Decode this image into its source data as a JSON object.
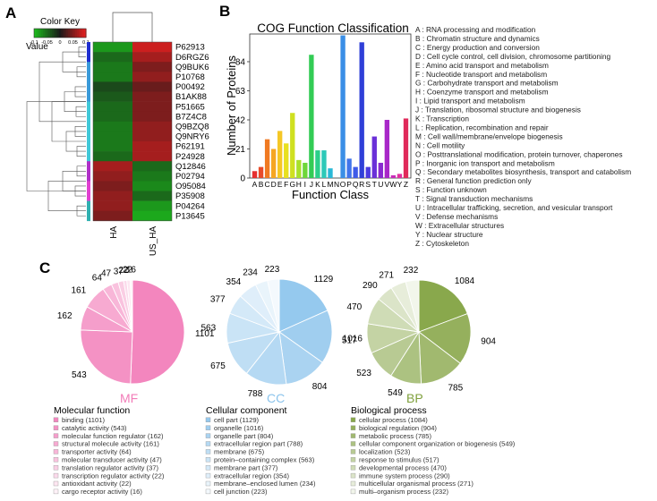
{
  "panel_labels": {
    "a": "A",
    "b": "B",
    "c": "C"
  },
  "colors": {
    "heat_low": "#1cb81c",
    "heat_mid": "#1a1a1a",
    "heat_high": "#e02020",
    "mf": "#f27cb8",
    "cc": "#8cc4ec",
    "bp": "#7fa03c"
  },
  "chart_data": [
    {
      "type": "heatmap",
      "title": "Color Key",
      "value_label": "Value",
      "color_key_ticks": [
        "-0.1",
        "-0.05",
        "0",
        "0.05",
        "0.1"
      ],
      "columns": [
        "HA",
        "US_HA"
      ],
      "rows": [
        "P62913",
        "D6RGZ6",
        "Q9BUK6",
        "P10768",
        "P00492",
        "B1AK88",
        "P51665",
        "B7Z4C8",
        "Q9BZQ8",
        "Q9NRY6",
        "P62191",
        "P24928",
        "Q12846",
        "P02794",
        "O95084",
        "P35908",
        "P04264",
        "P13645"
      ],
      "values": [
        [
          -0.08,
          0.09
        ],
        [
          -0.05,
          0.07
        ],
        [
          -0.06,
          0.05
        ],
        [
          -0.06,
          0.06
        ],
        [
          -0.03,
          0.04
        ],
        [
          -0.04,
          0.05
        ],
        [
          -0.05,
          0.05
        ],
        [
          -0.05,
          0.05
        ],
        [
          -0.06,
          0.06
        ],
        [
          -0.06,
          0.06
        ],
        [
          -0.06,
          0.07
        ],
        [
          -0.05,
          0.07
        ],
        [
          0.07,
          -0.05
        ],
        [
          0.06,
          -0.06
        ],
        [
          0.05,
          -0.07
        ],
        [
          0.06,
          -0.05
        ],
        [
          0.06,
          -0.08
        ],
        [
          0.05,
          -0.09
        ]
      ],
      "row_groups": [
        "#1f2fd0",
        "#1f2fd0",
        "#3a9ad9",
        "#3a9ad9",
        "#3a9ad9",
        "#3a9ad9",
        "#40c8d8",
        "#40c8d8",
        "#40c8d8",
        "#40c8d8",
        "#40c8d8",
        "#40c8d8",
        "#b030c8",
        "#b030c8",
        "#e040d0",
        "#e040d0",
        "#30b0b0",
        "#30b0b0"
      ]
    },
    {
      "type": "bar",
      "title": "COG Function Classification",
      "xlabel": "Function Class",
      "ylabel": "Number of Proteins",
      "ylim": [
        0,
        104
      ],
      "yticks": [
        0,
        21,
        42,
        63,
        84
      ],
      "categories": [
        "A",
        "B",
        "C",
        "D",
        "E",
        "F",
        "G",
        "H",
        "I",
        "J",
        "K",
        "L",
        "M",
        "N",
        "O",
        "P",
        "Q",
        "R",
        "S",
        "T",
        "U",
        "V",
        "W",
        "Y",
        "Z"
      ],
      "values": [
        5,
        8,
        28,
        21,
        34,
        25,
        47,
        13,
        11,
        89,
        20,
        20,
        7,
        0,
        103,
        14,
        8,
        98,
        8,
        30,
        11,
        42,
        2,
        3,
        43
      ],
      "bar_colors": [
        "#e53030",
        "#e84b2a",
        "#f07a22",
        "#f5a623",
        "#f5c726",
        "#e8e020",
        "#cfe020",
        "#a8e02a",
        "#6fd63a",
        "#33cc55",
        "#2ccf8a",
        "#2cc9b8",
        "#2ab8d6",
        "#2ea3e0",
        "#3a8ee6",
        "#4174ea",
        "#3f5be8",
        "#2f3fd8",
        "#4a3ae0",
        "#6a30d8",
        "#8a2ad0",
        "#a828c8",
        "#c82cb8",
        "#e030a0",
        "#e02a5a"
      ],
      "legend": [
        "A : RNA processing and modification",
        "B : Chromatin structure and dynamics",
        "C : Energy production and conversion",
        "D : Cell cycle control, cell division, chromosome partitioning",
        "E : Amino acid transport and metabolism",
        "F : Nucleotide transport and metabolism",
        "G : Carbohydrate transport and metabolism",
        "H : Coenzyme transport and metabolism",
        "I : Lipid transport and metabolism",
        "J : Translation, ribosomal structure and biogenesis",
        "K : Transcription",
        "L : Replication, recombination and repair",
        "M : Cell wall/membrane/envelope biogenesis",
        "N : Cell motility",
        "O : Posttranslational modification, protein turnover, chaperones",
        "P : Inorganic ion transport and metabolism",
        "Q : Secondary metabolites biosynthesis, transport and catabolism",
        "R : General function prediction only",
        "S : Function unknown",
        "T : Signal transduction mechanisms",
        "U : Intracellular trafficking, secretion, and vesicular transport",
        "V : Defense mechanisms",
        "W : Extracellular structures",
        "Y : Nuclear structure",
        "Z : Cytoskeleton"
      ]
    },
    {
      "type": "pie",
      "abbr": "MF",
      "title": "Molecular function",
      "base_color": "#f27cb8",
      "values": [
        1101,
        543,
        162,
        161,
        64,
        47,
        37,
        22,
        22,
        16
      ],
      "slice_labels": [
        "1101",
        "543",
        "162",
        "161",
        "64",
        "47",
        "37",
        "22",
        "22",
        "16"
      ],
      "legend": [
        "binding (1101)",
        "catalytic activity (543)",
        "molecular function regulator (162)",
        "structural molecule activity (161)",
        "transporter activity (64)",
        "molecular transducer activity (47)",
        "translation regulator activity (37)",
        "transcription regulator activity (22)",
        "antioxidant activity (22)",
        "cargo receptor activity (16)"
      ]
    },
    {
      "type": "pie",
      "abbr": "CC",
      "title": "Cellular component",
      "base_color": "#8cc4ec",
      "values": [
        1129,
        1016,
        804,
        788,
        675,
        563,
        377,
        354,
        234,
        223
      ],
      "slice_labels": [
        "1129",
        "1016",
        "804",
        "788",
        "675",
        "563",
        "377",
        "354",
        "234",
        "223"
      ],
      "legend": [
        "cell part (1129)",
        "organelle (1016)",
        "organelle part (804)",
        "extracellular region part (788)",
        "membrane (675)",
        "protein–containing complex (563)",
        "membrane part (377)",
        "extracellular region (354)",
        "membrane–enclosed lumen (234)",
        "cell junction (223)"
      ]
    },
    {
      "type": "pie",
      "abbr": "BP",
      "title": "Biological process",
      "base_color": "#7fa03c",
      "values": [
        1084,
        904,
        785,
        549,
        523,
        517,
        470,
        290,
        271,
        232
      ],
      "slice_labels": [
        "1084",
        "904",
        "785",
        "549",
        "523",
        "517",
        "470",
        "290",
        "271",
        "232"
      ],
      "legend": [
        "cellular process (1084)",
        "biological regulation (904)",
        "metabolic process (785)",
        "cellular component organization or biogenesis (549)",
        "localization (523)",
        "response to stimulus (517)",
        "developmental process (470)",
        "immune system process (290)",
        "multicellular organismal process (271)",
        "multi–organism process (232)"
      ]
    }
  ]
}
